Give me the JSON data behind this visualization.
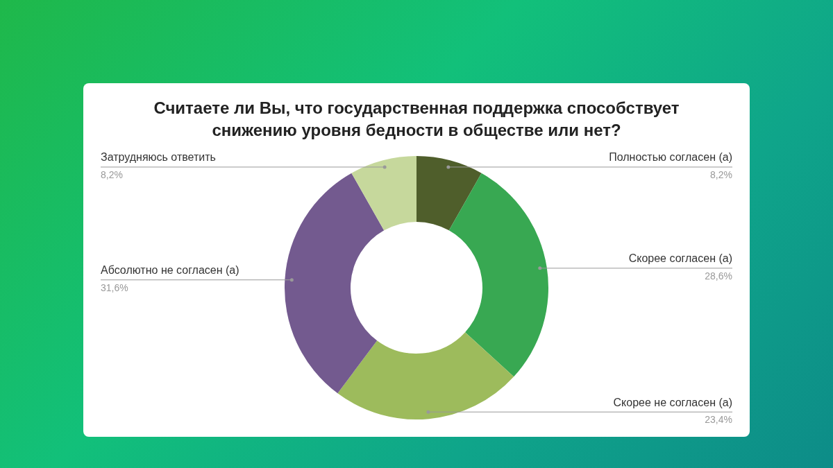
{
  "chart_data": {
    "type": "donut",
    "title": "Считаете ли Вы, что государственная поддержка способствует снижению уровня бедности в обществе или нет?",
    "categories": [
      "Полностью согласен (а)",
      "Скорее согласен (а)",
      "Скорее не согласен (а)",
      "Абсолютно не согласен (а)",
      "Затрудняюсь ответить"
    ],
    "values": [
      8.2,
      28.6,
      23.4,
      31.6,
      8.2
    ],
    "colors": [
      "#4f5e2b",
      "#38a852",
      "#9dbb5c",
      "#735a8f",
      "#c6d89c"
    ],
    "value_labels": [
      "8,2%",
      "28,6%",
      "23,4%",
      "31,6%",
      "8,2%"
    ]
  }
}
